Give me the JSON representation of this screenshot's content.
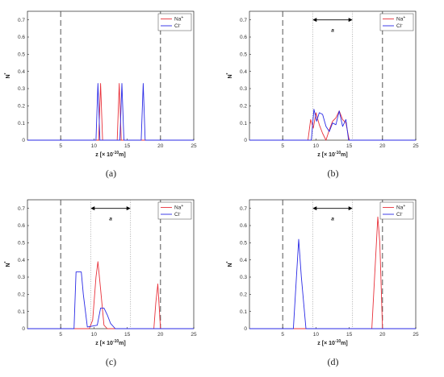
{
  "figure": {
    "captions": [
      "(a)",
      "(b)",
      "(c)",
      "(d)"
    ]
  },
  "legend": {
    "na": "Na",
    "na_sup": "+",
    "cl": "Cl",
    "cl_sup": "-"
  },
  "axes_text": {
    "ylabel": "N",
    "ylabel_sup": "*",
    "xlabel_prefix": "z [× 10",
    "xlabel_sup": "-10",
    "xlabel_suffix": "m]",
    "arrow_label": "a"
  },
  "colors": {
    "na": "#e8313a",
    "cl": "#2a2ae6",
    "boundary": "#555555",
    "dotted": "#999999",
    "axis": "#000000"
  },
  "chart_data": [
    {
      "type": "line",
      "xlim": [
        0,
        25
      ],
      "ylim": [
        0,
        0.75
      ],
      "xticks": [
        5,
        10,
        15,
        20,
        25
      ],
      "yticks": [
        0,
        0.1,
        0.2,
        0.3,
        0.4,
        0.5,
        0.6,
        0.7
      ],
      "boundaries": [
        5,
        20
      ],
      "dotted": [],
      "legend_position": "top-right",
      "series": [
        {
          "name": "Na+",
          "x": [
            0,
            10.7,
            11,
            11.3,
            13.5,
            13.8,
            14.1,
            25
          ],
          "y": [
            0,
            0,
            0.33,
            0,
            0,
            0.33,
            0,
            0
          ]
        },
        {
          "name": "Cl-",
          "x": [
            0,
            10.3,
            10.6,
            10.9,
            13.9,
            14.2,
            14.5,
            17.1,
            17.4,
            17.7,
            25
          ],
          "y": [
            0,
            0,
            0.33,
            0,
            0,
            0.33,
            0,
            0,
            0.33,
            0,
            0
          ]
        }
      ]
    },
    {
      "type": "line",
      "xlim": [
        0,
        25
      ],
      "ylim": [
        0,
        0.75
      ],
      "xticks": [
        5,
        10,
        15,
        20,
        25
      ],
      "yticks": [
        0,
        0.1,
        0.2,
        0.3,
        0.4,
        0.5,
        0.6,
        0.7
      ],
      "boundaries": [
        5,
        20
      ],
      "dotted": [
        9.5,
        15.5
      ],
      "arrow": {
        "y": 0.7,
        "x1": 9.5,
        "x2": 15.5,
        "label_y": 0.64
      },
      "legend_position": "top-right",
      "series": [
        {
          "name": "Na+",
          "x": [
            0,
            8.8,
            9.2,
            9.6,
            10.0,
            10.5,
            11.0,
            11.5,
            12.0,
            12.5,
            13.0,
            13.5,
            14.0,
            14.5,
            15.0,
            25
          ],
          "y": [
            0,
            0,
            0.12,
            0.07,
            0.16,
            0.09,
            0.04,
            0.0,
            0.06,
            0.11,
            0.13,
            0.17,
            0.12,
            0.1,
            0.0,
            0
          ]
        },
        {
          "name": "Cl-",
          "x": [
            0,
            9.3,
            9.7,
            10.1,
            10.5,
            11.0,
            11.5,
            12.0,
            12.5,
            13.0,
            13.5,
            14.0,
            14.5,
            14.9,
            25
          ],
          "y": [
            0,
            0,
            0.18,
            0.11,
            0.16,
            0.15,
            0.08,
            0.05,
            0.1,
            0.09,
            0.17,
            0.08,
            0.12,
            0.0,
            0
          ]
        }
      ]
    },
    {
      "type": "line",
      "xlim": [
        0,
        25
      ],
      "ylim": [
        0,
        0.75
      ],
      "xticks": [
        5,
        10,
        15,
        20,
        25
      ],
      "yticks": [
        0,
        0.1,
        0.2,
        0.3,
        0.4,
        0.5,
        0.6,
        0.7
      ],
      "boundaries": [
        5,
        20
      ],
      "dotted": [
        9.5,
        15.5
      ],
      "arrow": {
        "y": 0.7,
        "x1": 9.5,
        "x2": 15.5,
        "label_y": 0.64
      },
      "legend_position": "top-right",
      "series": [
        {
          "name": "Na+",
          "x": [
            0,
            9.3,
            9.8,
            10.3,
            10.6,
            11.0,
            11.5,
            12.0,
            19.0,
            19.3,
            19.6,
            20.0,
            25
          ],
          "y": [
            0,
            0,
            0.05,
            0.3,
            0.39,
            0.23,
            0.02,
            0,
            0,
            0.15,
            0.26,
            0,
            0
          ]
        },
        {
          "name": "Cl-",
          "x": [
            0,
            7.0,
            7.3,
            7.6,
            8.1,
            8.4,
            9.0,
            10.5,
            11.0,
            11.5,
            12.0,
            12.5,
            13.2,
            25
          ],
          "y": [
            0,
            0,
            0.33,
            0.33,
            0.33,
            0.2,
            0.01,
            0.02,
            0.12,
            0.12,
            0.08,
            0.03,
            0,
            0
          ]
        }
      ]
    },
    {
      "type": "line",
      "xlim": [
        0,
        25
      ],
      "ylim": [
        0,
        0.75
      ],
      "xticks": [
        5,
        10,
        15,
        20,
        25
      ],
      "yticks": [
        0,
        0.1,
        0.2,
        0.3,
        0.4,
        0.5,
        0.6,
        0.7
      ],
      "boundaries": [
        5,
        20
      ],
      "dotted": [
        9.5,
        15.5
      ],
      "arrow": {
        "y": 0.7,
        "x1": 9.5,
        "x2": 15.5,
        "label_y": 0.64
      },
      "legend_position": "top-right",
      "series": [
        {
          "name": "Na+",
          "x": [
            0,
            18.4,
            19.3,
            19.6,
            20.0,
            25
          ],
          "y": [
            0,
            0,
            0.65,
            0.5,
            0,
            0
          ]
        },
        {
          "name": "Cl-",
          "x": [
            0,
            6.6,
            7.4,
            7.8,
            8.5,
            25
          ],
          "y": [
            0,
            0,
            0.52,
            0.3,
            0,
            0
          ]
        }
      ]
    }
  ]
}
